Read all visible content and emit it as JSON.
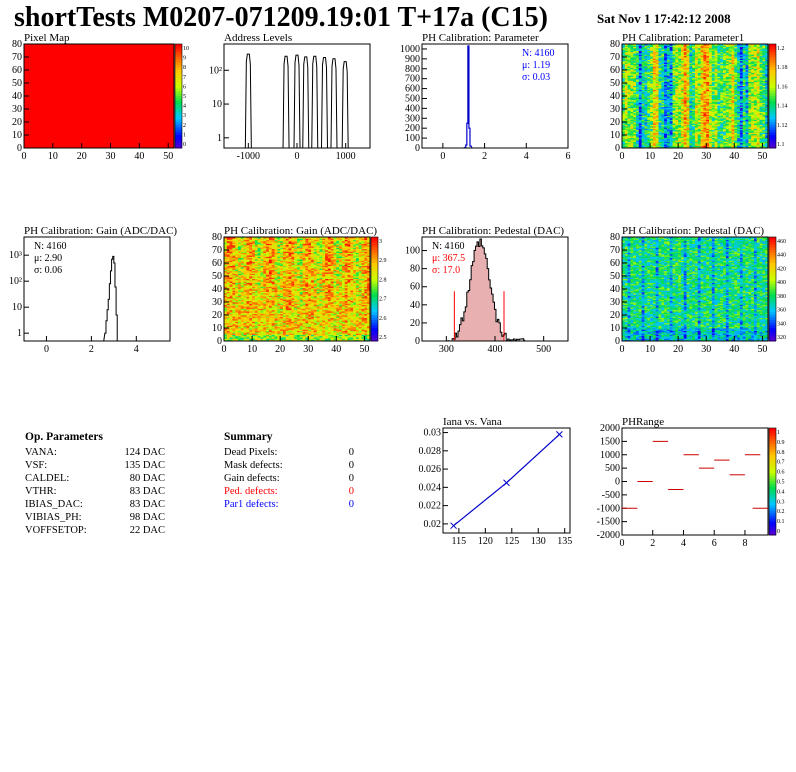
{
  "header": {
    "title": "shortTests M0207-071209.19:01 T+17a (C15)",
    "date": "Sat Nov  1 17:42:12 2008"
  },
  "colors": {
    "hist_line": "#000000",
    "stat_blue": "#0000ff",
    "stat_red": "#ff0000",
    "fit_blue": "#0000cc",
    "pixel_map_fill": "#ff0000",
    "phrange_segments": "#cc0000"
  },
  "chart_data": [
    {
      "id": "pixel-map",
      "type": "heatmap",
      "title": "Pixel Map",
      "xlim": [
        0,
        52
      ],
      "ylim": [
        0,
        80
      ],
      "xticks": [
        0,
        10,
        20,
        30,
        40,
        50
      ],
      "yticks": [
        0,
        10,
        20,
        30,
        40,
        50,
        60,
        70,
        80
      ],
      "uniform_value": 10,
      "colorbar_ticks": [
        "10",
        "9",
        "8",
        "7",
        "6",
        "5",
        "4",
        "3",
        "2",
        "1",
        "0"
      ]
    },
    {
      "id": "address-levels",
      "type": "bar",
      "title": "Address Levels",
      "log_y": true,
      "xlim": [
        -1500,
        1500
      ],
      "xticks": [
        -1000,
        0,
        1000
      ],
      "yticks": [
        {
          "v": 1,
          "label": "1"
        },
        {
          "v": 10,
          "label": "10"
        },
        {
          "v": 100,
          "label": "10²"
        }
      ],
      "peaks": [
        {
          "x": -1000,
          "y": 300
        },
        {
          "x": -225,
          "y": 260
        },
        {
          "x": 0,
          "y": 280
        },
        {
          "x": 180,
          "y": 250
        },
        {
          "x": 365,
          "y": 260
        },
        {
          "x": 565,
          "y": 240
        },
        {
          "x": 760,
          "y": 220
        },
        {
          "x": 990,
          "y": 180
        }
      ]
    },
    {
      "id": "ph-calibration-parameter",
      "type": "bar",
      "title": "PH Calibration: Parameter",
      "xlim": [
        -1,
        6
      ],
      "ylim": [
        0,
        1050
      ],
      "xticks": [
        0,
        2,
        4,
        6
      ],
      "yticks": [
        0,
        100,
        200,
        300,
        400,
        500,
        600,
        700,
        800,
        900,
        1000
      ],
      "bins": [
        [
          1.05,
          5
        ],
        [
          1.1,
          30
        ],
        [
          1.15,
          250
        ],
        [
          1.2,
          1030
        ],
        [
          1.25,
          200
        ],
        [
          1.3,
          20
        ]
      ],
      "stats": {
        "n": "N: 4160",
        "mean": "μ: 1.19",
        "sigma": "σ: 0.03"
      }
    },
    {
      "id": "ph-calibration-parameter1",
      "type": "heatmap",
      "title": "PH Calibration: Parameter1",
      "xlim": [
        0,
        52
      ],
      "ylim": [
        0,
        80
      ],
      "xticks": [
        0,
        10,
        20,
        30,
        40,
        50
      ],
      "yticks": [
        0,
        10,
        20,
        30,
        40,
        50,
        60,
        70,
        80
      ],
      "colorbar_ticks": [
        "1.2",
        "1.18",
        "1.16",
        "1.14",
        "1.12",
        "1.1"
      ]
    },
    {
      "id": "ph-calibration-gain-hist",
      "type": "bar",
      "title": "PH Calibration: Gain (ADC/DAC)",
      "log_y": true,
      "xlim": [
        -1,
        5.5
      ],
      "xticks": [
        0,
        2,
        4
      ],
      "yticks": [
        {
          "v": 1,
          "label": "1"
        },
        {
          "v": 10,
          "label": "10"
        },
        {
          "v": 100,
          "label": "10²"
        },
        {
          "v": 1000,
          "label": "10³"
        }
      ],
      "bins": [
        [
          2.6,
          1
        ],
        [
          2.65,
          3
        ],
        [
          2.7,
          8
        ],
        [
          2.75,
          20
        ],
        [
          2.8,
          80
        ],
        [
          2.85,
          250
        ],
        [
          2.9,
          700
        ],
        [
          2.95,
          900
        ],
        [
          3.0,
          500
        ],
        [
          3.05,
          60
        ],
        [
          3.1,
          5
        ]
      ],
      "stats": {
        "n": "N: 4160",
        "mean": "μ: 2.90",
        "sigma": "σ: 0.06"
      }
    },
    {
      "id": "ph-calibration-gain-map",
      "type": "heatmap",
      "title": "PH Calibration: Gain (ADC/DAC)",
      "xlim": [
        0,
        52
      ],
      "ylim": [
        0,
        80
      ],
      "xticks": [
        0,
        10,
        20,
        30,
        40,
        50
      ],
      "yticks": [
        0,
        10,
        20,
        30,
        40,
        50,
        60,
        70,
        80
      ],
      "colorbar_ticks": [
        "3",
        "2.9",
        "2.8",
        "2.7",
        "2.6",
        "2.5"
      ]
    },
    {
      "id": "ph-calibration-pedestal-hist",
      "type": "bar",
      "title": "PH Calibration: Pedestal (DAC)",
      "xlim": [
        250,
        550
      ],
      "ylim": [
        0,
        115
      ],
      "xticks": [
        300,
        400,
        500
      ],
      "yticks": [
        0,
        20,
        40,
        60,
        80,
        100
      ],
      "mean": 367.5,
      "sigma": 17.0,
      "cut_lines": [
        316.5,
        418.5
      ],
      "stats": {
        "n": "N: 4160",
        "mean": "μ: 367.5",
        "sigma": "σ: 17.0"
      }
    },
    {
      "id": "ph-calibration-pedestal-map",
      "type": "heatmap",
      "title": "PH Calibration: Pedestal (DAC)",
      "xlim": [
        0,
        52
      ],
      "ylim": [
        0,
        80
      ],
      "xticks": [
        0,
        10,
        20,
        30,
        40,
        50
      ],
      "yticks": [
        0,
        10,
        20,
        30,
        40,
        50,
        60,
        70,
        80
      ],
      "colorbar_ticks": [
        "460",
        "440",
        "420",
        "400",
        "380",
        "360",
        "340",
        "320"
      ]
    },
    {
      "id": "iana-vs-vana",
      "type": "scatter",
      "title": "Iana vs. Vana",
      "xlim": [
        112,
        136
      ],
      "ylim": [
        0.019,
        0.0305
      ],
      "xticks": [
        115,
        120,
        125,
        130,
        135
      ],
      "yticks": [
        {
          "v": 0.02,
          "label": "0.02"
        },
        {
          "v": 0.022,
          "label": "0.022"
        },
        {
          "v": 0.024,
          "label": "0.024"
        },
        {
          "v": 0.026,
          "label": "0.026"
        },
        {
          "v": 0.028,
          "label": "0.028"
        },
        {
          "v": 0.03,
          "label": "0.03"
        }
      ],
      "x": [
        114,
        124,
        134
      ],
      "y": [
        0.0198,
        0.0245,
        0.0298
      ]
    },
    {
      "id": "phrange",
      "type": "line",
      "title": "PHRange",
      "xlim": [
        0,
        9.5
      ],
      "ylim": [
        -2000,
        2000
      ],
      "xticks": [
        0,
        2,
        4,
        6,
        8
      ],
      "yticks": [
        -2000,
        -1500,
        -1000,
        -500,
        0,
        500,
        1000,
        1500,
        2000
      ],
      "segments": [
        [
          0,
          -1000
        ],
        [
          1,
          0
        ],
        [
          2,
          1500
        ],
        [
          3,
          -300
        ],
        [
          4,
          1000
        ],
        [
          5,
          500
        ],
        [
          6,
          800
        ],
        [
          7,
          250
        ],
        [
          8,
          1000
        ],
        [
          8.5,
          -1000
        ]
      ],
      "colorbar_ticks": [
        "1",
        "0.9",
        "0.8",
        "0.7",
        "0.6",
        "0.5",
        "0.4",
        "0.3",
        "0.2",
        "0.1",
        "0"
      ]
    }
  ],
  "op_parameters": {
    "title": "Op. Parameters",
    "rows": [
      {
        "name": "VANA:",
        "value": "124 DAC"
      },
      {
        "name": "VSF:",
        "value": "135 DAC"
      },
      {
        "name": "CALDEL:",
        "value": "80 DAC"
      },
      {
        "name": "VTHR:",
        "value": "83 DAC"
      },
      {
        "name": "IBIAS_DAC:",
        "value": "83 DAC"
      },
      {
        "name": "VIBIAS_PH:",
        "value": "98 DAC"
      },
      {
        "name": "VOFFSETOP:",
        "value": "22 DAC"
      }
    ]
  },
  "summary": {
    "title": "Summary",
    "rows": [
      {
        "name": "Dead Pixels:",
        "value": "0",
        "color": "#000000"
      },
      {
        "name": "Mask defects:",
        "value": "0",
        "color": "#000000"
      },
      {
        "name": "Gain defects:",
        "value": "0",
        "color": "#000000"
      },
      {
        "name": "Ped. defects:",
        "value": "0",
        "color": "#ff0000"
      },
      {
        "name": "Par1 defects:",
        "value": "0",
        "color": "#0000ff"
      }
    ]
  }
}
